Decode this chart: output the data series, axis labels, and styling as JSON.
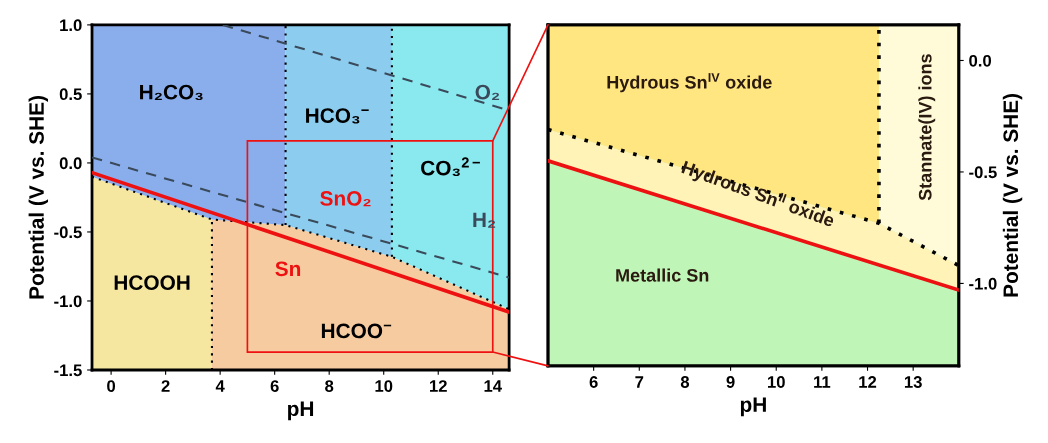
{
  "chart_data": [
    {
      "type": "line",
      "xlabel": "pH",
      "ylabel": "Potential (V vs. SHE)",
      "xlim": [
        -0.7,
        14.6
      ],
      "ylim": [
        -1.5,
        1.0
      ],
      "xticks": [
        0,
        2,
        4,
        6,
        8,
        10,
        12,
        14
      ],
      "yticks": [
        {
          "value": -1.5,
          "label": "-1.5"
        },
        {
          "value": -1.0,
          "label": "-1.0"
        },
        {
          "value": -0.5,
          "label": "-0.5"
        },
        {
          "value": 0.0,
          "label": "0.0"
        },
        {
          "value": 0.5,
          "label": "0.5"
        },
        {
          "value": 1.0,
          "label": "1.0"
        }
      ],
      "series": [
        {
          "color": "#000000",
          "line_style": "dotted",
          "x": [
            -0.7,
            3.7,
            6.4,
            10.3,
            14.6
          ],
          "values": [
            -0.1,
            -0.41,
            -0.45,
            -0.68,
            -1.06
          ]
        },
        {
          "color": "#000000",
          "line_style": "dotted",
          "x": [
            3.7,
            3.7
          ],
          "values": [
            -1.5,
            -0.41
          ]
        },
        {
          "color": "#000000",
          "line_style": "dotted",
          "x": [
            6.4,
            6.4
          ],
          "values": [
            -0.45,
            1.0
          ]
        },
        {
          "color": "#000000",
          "line_style": "dotted",
          "x": [
            10.3,
            10.3
          ],
          "values": [
            -0.68,
            1.0
          ]
        },
        {
          "color": "#3a4a5a",
          "line_style": "dashed",
          "x": [
            4.1,
            14.6
          ],
          "values": [
            1.0,
            0.38
          ]
        },
        {
          "color": "#3a4a5a",
          "line_style": "dashed",
          "x": [
            -0.7,
            14.6
          ],
          "values": [
            0.04,
            -0.83
          ]
        },
        {
          "color": "#ee1111",
          "line_style": "solid",
          "x": [
            -0.7,
            14.6
          ],
          "values": [
            -0.07,
            -1.08
          ]
        }
      ],
      "annotations": [
        "H₂CO₃",
        "HCO₃$^{−}$",
        "CO₃$^{2−}$",
        "O₂",
        "H₂",
        "SnO₂",
        "Sn",
        "HCOOH",
        "HCOO$^{−}$"
      ]
    },
    {
      "type": "line",
      "xlabel": "pH",
      "y2label": "Potential (V vs. SHE)",
      "xlim": [
        5.0,
        14.0
      ],
      "y2lim": [
        -1.37,
        0.16
      ],
      "xticks": [
        6,
        7,
        8,
        9,
        10,
        11,
        12,
        13
      ],
      "y2ticks": [
        {
          "value": -1.0,
          "label": "-1.0"
        },
        {
          "value": -0.5,
          "label": "-0.5"
        },
        {
          "value": 0.0,
          "label": "0.0"
        }
      ],
      "series": [
        {
          "axis": "y2",
          "color": "#000000",
          "line_style": "dotted",
          "x": [
            5.0,
            12.25,
            14.0
          ],
          "values": [
            -0.31,
            -0.73,
            -0.92
          ]
        },
        {
          "axis": "y2",
          "color": "#000000",
          "line_style": "dotted",
          "x": [
            12.25,
            12.25
          ],
          "values": [
            -0.73,
            0.16
          ]
        },
        {
          "axis": "y2",
          "color": "#ee1111",
          "line_style": "solid",
          "x": [
            5.0,
            14.0
          ],
          "values": [
            -0.45,
            -1.03
          ]
        }
      ],
      "annotations": [
        "Hydrous Sn$^{IV}$ oxide",
        "Hydrous Sn$^{II}$ oxide",
        "Stannate(IV) ions",
        "Metallic Sn"
      ]
    }
  ]
}
